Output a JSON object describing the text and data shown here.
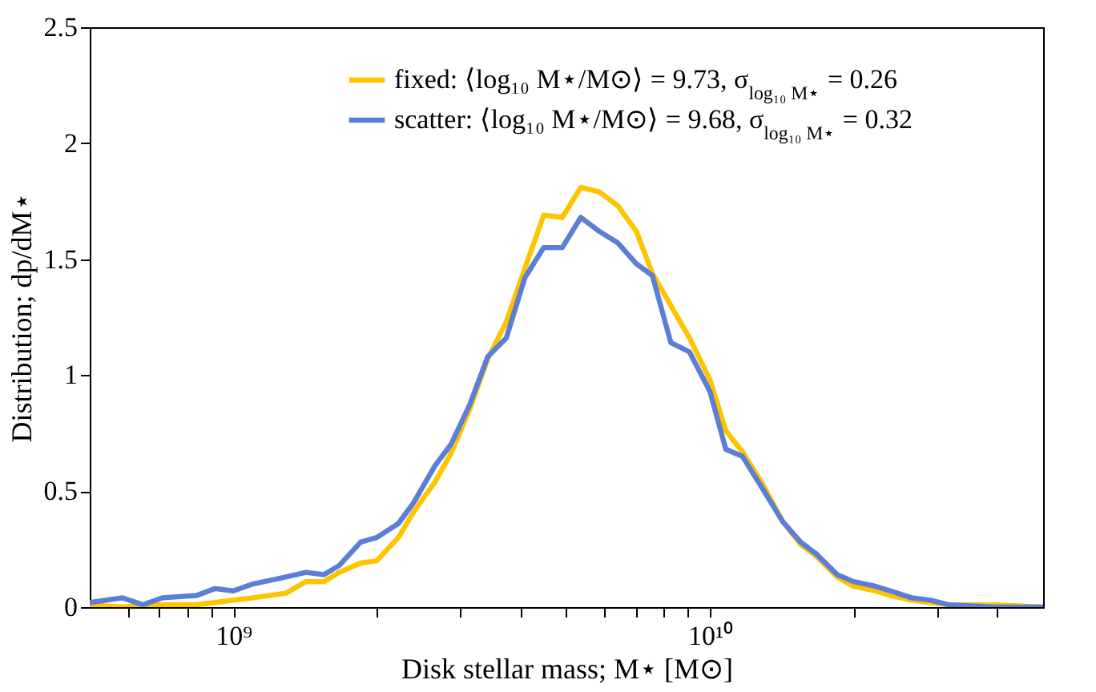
{
  "chart_data": {
    "type": "line",
    "xlabel": "Disk stellar mass; M⋆ [M⊙]",
    "ylabel": "Distribution; dp/dM⋆",
    "x": [
      500000000.0,
      586000000.0,
      646000000.0,
      710000000.0,
      837000000.0,
      916000000.0,
      1000000000.0,
      1100000000.0,
      1290000000.0,
      1420000000.0,
      1550000000.0,
      1670000000.0,
      1850000000.0,
      2000000000.0,
      2220000000.0,
      2390000000.0,
      2650000000.0,
      2860000000.0,
      3130000000.0,
      3420000000.0,
      3740000000.0,
      4090000000.0,
      4480000000.0,
      4900000000.0,
      5360000000.0,
      5860000000.0,
      6410000000.0,
      7010000000.0,
      7570000000.0,
      8280000000.0,
      9060000000.0,
      10000000000.0,
      10800000000.0,
      11700000000.0,
      12900000000.0,
      14200000000.0,
      15500000000.0,
      16700000000.0,
      18500000000.0,
      20000000000.0,
      22200000000.0,
      23900000000.0,
      26500000000.0,
      29000000000.0,
      31700000000.0,
      39800000000.0,
      50000000000.0
    ],
    "series": [
      {
        "name": "fixed: ⟨log₁₀ M⋆/M⊙⟩ = 9.73, σ$_{log₁₀ M⋆}$ = 0.26",
        "color": "#ffc400",
        "values": [
          0.01,
          0.0,
          0.01,
          0.01,
          0.01,
          0.02,
          0.03,
          0.04,
          0.06,
          0.11,
          0.11,
          0.15,
          0.19,
          0.2,
          0.3,
          0.41,
          0.54,
          0.66,
          0.85,
          1.07,
          1.23,
          1.46,
          1.69,
          1.68,
          1.81,
          1.79,
          1.73,
          1.62,
          1.44,
          1.3,
          1.16,
          0.98,
          0.76,
          0.67,
          0.53,
          0.37,
          0.27,
          0.22,
          0.13,
          0.09,
          0.07,
          0.05,
          0.03,
          0.02,
          0.01,
          0.01,
          0.0
        ]
      },
      {
        "name": "scatter: ⟨log₁₀ M⋆/M⊙⟩ = 9.68, σ$_{log₁₀ M⋆}$ = 0.32",
        "color": "#5b7fd6",
        "values": [
          0.02,
          0.04,
          0.01,
          0.04,
          0.05,
          0.08,
          0.07,
          0.1,
          0.13,
          0.15,
          0.14,
          0.18,
          0.28,
          0.3,
          0.36,
          0.45,
          0.61,
          0.7,
          0.87,
          1.08,
          1.16,
          1.42,
          1.55,
          1.55,
          1.68,
          1.62,
          1.57,
          1.48,
          1.43,
          1.14,
          1.1,
          0.93,
          0.68,
          0.65,
          0.51,
          0.37,
          0.28,
          0.23,
          0.14,
          0.11,
          0.09,
          0.07,
          0.04,
          0.03,
          0.01,
          0.0,
          0.0
        ]
      }
    ],
    "log": "x",
    "xlim": [
      500000000.0,
      50000000000.0
    ],
    "xticks": [
      {
        "value": 600000000.0,
        "label": null
      },
      {
        "value": 700000000.0,
        "label": null
      },
      {
        "value": 800000000.0,
        "label": null
      },
      {
        "value": 900000000.0,
        "label": null
      },
      {
        "value": 1000000000.0,
        "label": "10⁹"
      },
      {
        "value": 2000000000.0,
        "label": null
      },
      {
        "value": 3000000000.0,
        "label": null
      },
      {
        "value": 4000000000.0,
        "label": null
      },
      {
        "value": 5000000000.0,
        "label": null
      },
      {
        "value": 6000000000.0,
        "label": null
      },
      {
        "value": 7000000000.0,
        "label": null
      },
      {
        "value": 8000000000.0,
        "label": null
      },
      {
        "value": 9000000000.0,
        "label": null
      },
      {
        "value": 10000000000.0,
        "label": "10¹⁰"
      },
      {
        "value": 20000000000.0,
        "label": null
      },
      {
        "value": 30000000000.0,
        "label": null
      },
      {
        "value": 40000000000.0,
        "label": null
      }
    ],
    "ylim": [
      0,
      2.5
    ],
    "yticks": [
      0,
      0.5,
      1,
      1.5,
      2,
      2.5
    ],
    "grid": false,
    "legend": "top right",
    "marker": "none",
    "line_style": "solid"
  }
}
